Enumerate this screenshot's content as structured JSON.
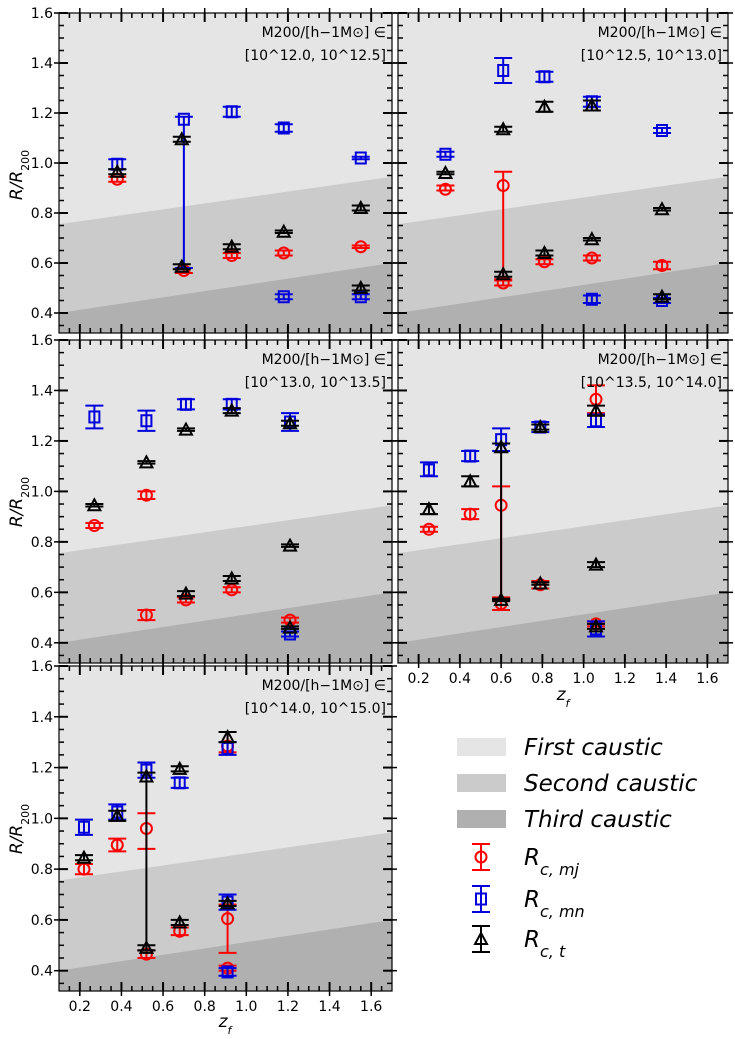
{
  "colors": {
    "first_caustic": "#e5e5e5",
    "second_caustic": "#cbcbcb",
    "third_caustic": "#b0b0b0",
    "mj": "#ff0000",
    "mn": "#0000dd",
    "t": "#000000"
  },
  "axis_text": {
    "ylabel": "R/R",
    "ylabel_sub": "200",
    "xlabel": "z",
    "xlabel_sub": "f"
  },
  "legend": {
    "first": "First caustic",
    "second": "Second caustic",
    "third": "Third caustic",
    "mj": "R",
    "mj_sub": "c, mj",
    "mn": "R",
    "mn_sub": "c, mn",
    "t": "R",
    "t_sub": "c, t"
  },
  "chart_data": [
    {
      "type": "scatter",
      "title_line1": "M200/[h−1M⊙] ∈",
      "title_line2": "[10^12.0, 10^12.5]",
      "xlim": [
        0.1,
        1.7
      ],
      "ylim": [
        0.32,
        1.6
      ],
      "x_ticks": [
        "0.2",
        "0.4",
        "0.6",
        "0.8",
        "1.0",
        "1.2",
        "1.4",
        "1.6"
      ],
      "y_ticks": [
        "0.4",
        "0.6",
        "0.8",
        "1.0",
        "1.2",
        "1.4",
        "1.6"
      ],
      "show_xticklabels": false,
      "show_yticklabels": true,
      "caustic_bands": {
        "first_lower": [
          0.755,
          0.945
        ],
        "second_lower": [
          0.4,
          0.6
        ]
      },
      "series": [
        {
          "key": "mj",
          "marker": "circle",
          "points": [
            {
              "x": 0.38,
              "y": 0.935,
              "lo": 0.925,
              "hi": 0.945
            },
            {
              "x": 0.7,
              "y": 0.57,
              "lo": 0.56,
              "hi": 0.58
            },
            {
              "x": 0.93,
              "y": 0.63,
              "lo": 0.62,
              "hi": 0.64
            },
            {
              "x": 1.18,
              "y": 0.64,
              "lo": 0.63,
              "hi": 0.65
            },
            {
              "x": 1.55,
              "y": 0.665,
              "lo": 0.66,
              "hi": 0.67
            }
          ]
        },
        {
          "key": "mn",
          "marker": "square",
          "points": [
            {
              "x": 0.38,
              "y": 0.995,
              "lo": 0.975,
              "hi": 1.015
            },
            {
              "x": 0.7,
              "y": 1.175,
              "lo": 0.58,
              "hi": 1.185
            },
            {
              "x": 0.93,
              "y": 1.205,
              "lo": 1.185,
              "hi": 1.225
            },
            {
              "x": 1.18,
              "y": 1.14,
              "lo": 1.125,
              "hi": 1.155
            },
            {
              "x": 1.18,
              "y": 0.465,
              "lo": 0.455,
              "hi": 0.475
            },
            {
              "x": 1.55,
              "y": 1.02,
              "lo": 1.015,
              "hi": 1.025
            },
            {
              "x": 1.55,
              "y": 0.465,
              "lo": 0.455,
              "hi": 0.475
            }
          ]
        },
        {
          "key": "t",
          "marker": "triangle",
          "points": [
            {
              "x": 0.38,
              "y": 0.965,
              "lo": 0.955,
              "hi": 0.975
            },
            {
              "x": 0.69,
              "y": 1.095,
              "lo": 1.085,
              "hi": 1.105
            },
            {
              "x": 0.69,
              "y": 0.585,
              "lo": 0.575,
              "hi": 0.595
            },
            {
              "x": 0.93,
              "y": 0.665,
              "lo": 0.655,
              "hi": 0.675
            },
            {
              "x": 1.18,
              "y": 0.725,
              "lo": 0.72,
              "hi": 0.73
            },
            {
              "x": 1.55,
              "y": 0.82,
              "lo": 0.81,
              "hi": 0.83
            },
            {
              "x": 1.55,
              "y": 0.5,
              "lo": 0.49,
              "hi": 0.51
            }
          ]
        }
      ]
    },
    {
      "type": "scatter",
      "title_line1": "M200/[h−1M⊙] ∈",
      "title_line2": "[10^12.5, 10^13.0]",
      "xlim": [
        0.1,
        1.7
      ],
      "ylim": [
        0.32,
        1.6
      ],
      "x_ticks": [
        "0.2",
        "0.4",
        "0.6",
        "0.8",
        "1.0",
        "1.2",
        "1.4",
        "1.6"
      ],
      "y_ticks": [
        "0.4",
        "0.6",
        "0.8",
        "1.0",
        "1.2",
        "1.4",
        "1.6"
      ],
      "show_xticklabels": false,
      "show_yticklabels": false,
      "caustic_bands": {
        "first_lower": [
          0.755,
          0.945
        ],
        "second_lower": [
          0.4,
          0.6
        ]
      },
      "series": [
        {
          "key": "mj",
          "marker": "circle",
          "points": [
            {
              "x": 0.33,
              "y": 0.895,
              "lo": 0.89,
              "hi": 0.91
            },
            {
              "x": 0.61,
              "y": 0.91,
              "lo": 0.535,
              "hi": 0.965
            },
            {
              "x": 0.61,
              "y": 0.52,
              "lo": 0.51,
              "hi": 0.53
            },
            {
              "x": 0.81,
              "y": 0.605,
              "lo": 0.595,
              "hi": 0.615
            },
            {
              "x": 1.04,
              "y": 0.62,
              "lo": 0.61,
              "hi": 0.63
            },
            {
              "x": 1.38,
              "y": 0.59,
              "lo": 0.575,
              "hi": 0.605
            }
          ]
        },
        {
          "key": "mn",
          "marker": "square",
          "points": [
            {
              "x": 0.33,
              "y": 1.035,
              "lo": 1.025,
              "hi": 1.045
            },
            {
              "x": 0.61,
              "y": 1.37,
              "lo": 1.32,
              "hi": 1.42
            },
            {
              "x": 0.81,
              "y": 1.345,
              "lo": 1.325,
              "hi": 1.365
            },
            {
              "x": 1.04,
              "y": 1.245,
              "lo": 1.225,
              "hi": 1.265
            },
            {
              "x": 1.04,
              "y": 0.455,
              "lo": 0.44,
              "hi": 0.47
            },
            {
              "x": 1.38,
              "y": 1.13,
              "lo": 1.12,
              "hi": 1.14
            },
            {
              "x": 1.38,
              "y": 0.45,
              "lo": 0.44,
              "hi": 0.46
            }
          ]
        },
        {
          "key": "t",
          "marker": "triangle",
          "points": [
            {
              "x": 0.33,
              "y": 0.96,
              "lo": 0.955,
              "hi": 0.965
            },
            {
              "x": 0.61,
              "y": 1.135,
              "lo": 1.125,
              "hi": 1.145
            },
            {
              "x": 0.61,
              "y": 0.555,
              "lo": 0.545,
              "hi": 0.565
            },
            {
              "x": 0.81,
              "y": 1.225,
              "lo": 1.205,
              "hi": 1.245
            },
            {
              "x": 0.81,
              "y": 0.64,
              "lo": 0.63,
              "hi": 0.65
            },
            {
              "x": 1.04,
              "y": 1.23,
              "lo": 1.21,
              "hi": 1.25
            },
            {
              "x": 1.04,
              "y": 0.695,
              "lo": 0.69,
              "hi": 0.7
            },
            {
              "x": 1.38,
              "y": 0.815,
              "lo": 0.81,
              "hi": 0.82
            },
            {
              "x": 1.38,
              "y": 0.465,
              "lo": 0.455,
              "hi": 0.475
            }
          ]
        }
      ]
    },
    {
      "type": "scatter",
      "title_line1": "M200/[h−1M⊙] ∈",
      "title_line2": "[10^13.0, 10^13.5]",
      "xlim": [
        0.1,
        1.7
      ],
      "ylim": [
        0.32,
        1.6
      ],
      "x_ticks": [
        "0.2",
        "0.4",
        "0.6",
        "0.8",
        "1.0",
        "1.2",
        "1.4",
        "1.6"
      ],
      "y_ticks": [
        "0.4",
        "0.6",
        "0.8",
        "1.0",
        "1.2",
        "1.4",
        "1.6"
      ],
      "show_xticklabels": false,
      "show_yticklabels": true,
      "caustic_bands": {
        "first_lower": [
          0.755,
          0.945
        ],
        "second_lower": [
          0.4,
          0.6
        ]
      },
      "series": [
        {
          "key": "mj",
          "marker": "circle",
          "points": [
            {
              "x": 0.27,
              "y": 0.865,
              "lo": 0.855,
              "hi": 0.875
            },
            {
              "x": 0.52,
              "y": 0.985,
              "lo": 0.97,
              "hi": 1.0
            },
            {
              "x": 0.52,
              "y": 0.51,
              "lo": 0.49,
              "hi": 0.53
            },
            {
              "x": 0.71,
              "y": 0.57,
              "lo": 0.56,
              "hi": 0.58
            },
            {
              "x": 0.93,
              "y": 0.61,
              "lo": 0.6,
              "hi": 0.62
            },
            {
              "x": 1.21,
              "y": 0.49,
              "lo": 0.48,
              "hi": 0.5
            }
          ]
        },
        {
          "key": "mn",
          "marker": "square",
          "points": [
            {
              "x": 0.27,
              "y": 1.295,
              "lo": 1.25,
              "hi": 1.34
            },
            {
              "x": 0.52,
              "y": 1.28,
              "lo": 1.24,
              "hi": 1.32
            },
            {
              "x": 0.71,
              "y": 1.345,
              "lo": 1.325,
              "hi": 1.365
            },
            {
              "x": 0.93,
              "y": 1.345,
              "lo": 1.325,
              "hi": 1.365
            },
            {
              "x": 1.21,
              "y": 1.275,
              "lo": 1.24,
              "hi": 1.31
            },
            {
              "x": 1.21,
              "y": 0.435,
              "lo": 0.425,
              "hi": 0.445
            }
          ]
        },
        {
          "key": "t",
          "marker": "triangle",
          "points": [
            {
              "x": 0.27,
              "y": 0.945,
              "lo": 0.94,
              "hi": 0.95
            },
            {
              "x": 0.52,
              "y": 1.115,
              "lo": 1.11,
              "hi": 1.12
            },
            {
              "x": 0.71,
              "y": 1.245,
              "lo": 1.24,
              "hi": 1.25
            },
            {
              "x": 0.71,
              "y": 0.595,
              "lo": 0.585,
              "hi": 0.605
            },
            {
              "x": 0.93,
              "y": 1.32,
              "lo": 1.31,
              "hi": 1.33
            },
            {
              "x": 0.93,
              "y": 0.655,
              "lo": 0.645,
              "hi": 0.665
            },
            {
              "x": 1.21,
              "y": 1.27,
              "lo": 1.26,
              "hi": 1.28
            },
            {
              "x": 1.21,
              "y": 0.785,
              "lo": 0.78,
              "hi": 0.79
            },
            {
              "x": 1.21,
              "y": 0.46,
              "lo": 0.455,
              "hi": 0.465
            }
          ]
        }
      ]
    },
    {
      "type": "scatter",
      "title_line1": "M200/[h−1M⊙] ∈",
      "title_line2": "[10^13.5, 10^14.0]",
      "xlim": [
        0.1,
        1.7
      ],
      "ylim": [
        0.32,
        1.6
      ],
      "x_ticks": [
        "0.2",
        "0.4",
        "0.6",
        "0.8",
        "1.0",
        "1.2",
        "1.4",
        "1.6"
      ],
      "y_ticks": [
        "0.4",
        "0.6",
        "0.8",
        "1.0",
        "1.2",
        "1.4",
        "1.6"
      ],
      "show_xticklabels": true,
      "show_yticklabels": false,
      "caustic_bands": {
        "first_lower": [
          0.755,
          0.945
        ],
        "second_lower": [
          0.4,
          0.6
        ]
      },
      "series": [
        {
          "key": "mj",
          "marker": "circle",
          "points": [
            {
              "x": 0.25,
              "y": 0.85,
              "lo": 0.84,
              "hi": 0.86
            },
            {
              "x": 0.45,
              "y": 0.91,
              "lo": 0.89,
              "hi": 0.93
            },
            {
              "x": 0.6,
              "y": 0.945,
              "lo": 0.57,
              "hi": 1.02
            },
            {
              "x": 0.6,
              "y": 0.555,
              "lo": 0.53,
              "hi": 0.58
            },
            {
              "x": 0.79,
              "y": 0.63,
              "lo": 0.615,
              "hi": 0.645
            },
            {
              "x": 1.06,
              "y": 1.365,
              "lo": 1.31,
              "hi": 1.42
            },
            {
              "x": 1.06,
              "y": 0.475,
              "lo": 0.465,
              "hi": 0.485
            }
          ]
        },
        {
          "key": "mn",
          "marker": "square",
          "points": [
            {
              "x": 0.25,
              "y": 1.085,
              "lo": 1.06,
              "hi": 1.115
            },
            {
              "x": 0.45,
              "y": 1.14,
              "lo": 1.12,
              "hi": 1.16
            },
            {
              "x": 0.6,
              "y": 1.205,
              "lo": 1.16,
              "hi": 1.25
            },
            {
              "x": 0.79,
              "y": 1.255,
              "lo": 1.235,
              "hi": 1.275
            },
            {
              "x": 1.06,
              "y": 1.28,
              "lo": 1.255,
              "hi": 1.305
            },
            {
              "x": 1.06,
              "y": 0.455,
              "lo": 0.425,
              "hi": 0.485
            }
          ]
        },
        {
          "key": "t",
          "marker": "triangle",
          "points": [
            {
              "x": 0.25,
              "y": 0.93,
              "lo": 0.91,
              "hi": 0.95
            },
            {
              "x": 0.45,
              "y": 1.04,
              "lo": 1.02,
              "hi": 1.06
            },
            {
              "x": 0.6,
              "y": 1.175,
              "lo": 0.57,
              "hi": 1.19
            },
            {
              "x": 0.6,
              "y": 0.57,
              "lo": 0.565,
              "hi": 0.575
            },
            {
              "x": 0.79,
              "y": 1.255,
              "lo": 1.245,
              "hi": 1.265
            },
            {
              "x": 0.79,
              "y": 0.635,
              "lo": 0.63,
              "hi": 0.64
            },
            {
              "x": 1.06,
              "y": 1.32,
              "lo": 1.3,
              "hi": 1.34
            },
            {
              "x": 1.06,
              "y": 0.71,
              "lo": 0.7,
              "hi": 0.72
            },
            {
              "x": 1.06,
              "y": 0.465,
              "lo": 0.455,
              "hi": 0.475
            }
          ]
        }
      ]
    },
    {
      "type": "scatter",
      "title_line1": "M200/[h−1M⊙] ∈",
      "title_line2": "[10^14.0, 10^15.0]",
      "xlim": [
        0.1,
        1.7
      ],
      "ylim": [
        0.32,
        1.6
      ],
      "x_ticks": [
        "0.2",
        "0.4",
        "0.6",
        "0.8",
        "1.0",
        "1.2",
        "1.4",
        "1.6"
      ],
      "y_ticks": [
        "0.4",
        "0.6",
        "0.8",
        "1.0",
        "1.2",
        "1.4",
        "1.6"
      ],
      "show_xticklabels": true,
      "show_yticklabels": true,
      "caustic_bands": {
        "first_lower": [
          0.755,
          0.945
        ],
        "second_lower": [
          0.4,
          0.6
        ]
      },
      "series": [
        {
          "key": "mj",
          "marker": "circle",
          "points": [
            {
              "x": 0.22,
              "y": 0.8,
              "lo": 0.78,
              "hi": 0.82
            },
            {
              "x": 0.38,
              "y": 0.895,
              "lo": 0.87,
              "hi": 0.92
            },
            {
              "x": 0.52,
              "y": 0.96,
              "lo": 0.88,
              "hi": 1.02
            },
            {
              "x": 0.52,
              "y": 0.465,
              "lo": 0.45,
              "hi": 0.48
            },
            {
              "x": 0.68,
              "y": 0.555,
              "lo": 0.54,
              "hi": 0.57
            },
            {
              "x": 0.91,
              "y": 1.285,
              "lo": 1.26,
              "hi": 1.34
            },
            {
              "x": 0.91,
              "y": 0.605,
              "lo": 0.47,
              "hi": 0.66
            },
            {
              "x": 0.91,
              "y": 0.41,
              "lo": 0.4,
              "hi": 0.42
            }
          ]
        },
        {
          "key": "mn",
          "marker": "square",
          "points": [
            {
              "x": 0.22,
              "y": 0.965,
              "lo": 0.935,
              "hi": 0.995
            },
            {
              "x": 0.38,
              "y": 1.025,
              "lo": 0.995,
              "hi": 1.055
            },
            {
              "x": 0.52,
              "y": 1.19,
              "lo": 1.16,
              "hi": 1.22
            },
            {
              "x": 0.68,
              "y": 1.14,
              "lo": 1.12,
              "hi": 1.16
            },
            {
              "x": 0.91,
              "y": 1.275,
              "lo": 1.25,
              "hi": 1.3
            },
            {
              "x": 0.91,
              "y": 0.67,
              "lo": 0.64,
              "hi": 0.7
            },
            {
              "x": 0.91,
              "y": 0.395,
              "lo": 0.38,
              "hi": 0.41
            }
          ]
        },
        {
          "key": "t",
          "marker": "triangle",
          "points": [
            {
              "x": 0.22,
              "y": 0.845,
              "lo": 0.835,
              "hi": 0.855
            },
            {
              "x": 0.38,
              "y": 1.01,
              "lo": 0.99,
              "hi": 1.03
            },
            {
              "x": 0.52,
              "y": 1.165,
              "lo": 0.48,
              "hi": 1.18
            },
            {
              "x": 0.52,
              "y": 0.49,
              "lo": 0.48,
              "hi": 0.5
            },
            {
              "x": 0.68,
              "y": 1.195,
              "lo": 1.185,
              "hi": 1.205
            },
            {
              "x": 0.68,
              "y": 0.59,
              "lo": 0.58,
              "hi": 0.6
            },
            {
              "x": 0.91,
              "y": 1.32,
              "lo": 1.3,
              "hi": 1.34
            },
            {
              "x": 0.91,
              "y": 0.665,
              "lo": 0.655,
              "hi": 0.675
            }
          ]
        }
      ]
    }
  ]
}
